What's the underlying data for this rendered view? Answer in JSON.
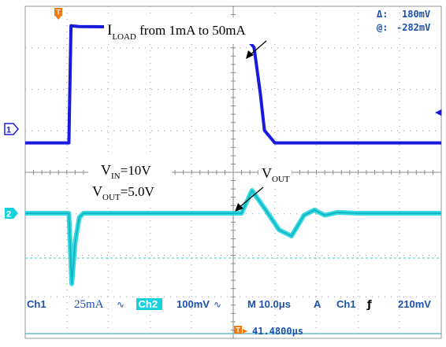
{
  "chart_data": {
    "type": "line",
    "grid": true,
    "time_per_div_us": 10.0,
    "series": [
      {
        "name": "Ch1",
        "scale": "25mA",
        "x_div": [
          0,
          1.05,
          1.1,
          1.3,
          4.8,
          5.2,
          5.5,
          5.65,
          5.75,
          6.0,
          10
        ],
        "y_div": [
          -0.2,
          -0.2,
          2.62,
          2.6,
          2.58,
          2.45,
          2.1,
          1.0,
          0.1,
          -0.2,
          -0.2
        ]
      },
      {
        "name": "Ch2",
        "scale": "100mV",
        "x_div": [
          0,
          1.05,
          1.12,
          1.2,
          1.3,
          1.4,
          5.2,
          5.45,
          5.8,
          6.1,
          6.4,
          6.7,
          6.95,
          7.2,
          7.5,
          8.0,
          8.5,
          9.0,
          10
        ],
        "y_div": [
          0,
          0,
          -1.7,
          -0.7,
          -0.1,
          0,
          0,
          0.55,
          0.05,
          -0.4,
          -0.55,
          -0.05,
          0.08,
          -0.05,
          0.02,
          0.0,
          0.0,
          0.0,
          0.0
        ]
      }
    ]
  },
  "annotations": {
    "iload_main": "I",
    "iload_sub": "LOAD",
    "iload_rest": " from 1mA  to 50mA",
    "vin_main": "V",
    "vin_sub": "IN",
    "vin_rest": "=10V",
    "vout_main": "V",
    "vout_sub": "OUT",
    "vout_rest": "=5.0V",
    "vout_label_main": "V",
    "vout_label_sub": "OUT"
  },
  "markers": {
    "trigger": "T",
    "ch1": "1",
    "ch2": "2",
    "trigger_level": "◀"
  },
  "cursor_readout": {
    "delta_symbol": "Δ:",
    "delta_value": "180mV",
    "at_symbol": "@:",
    "at_value": "-282mV"
  },
  "status_bar": {
    "ch1_label": "Ch1",
    "ch1_scale": "25mA",
    "ch1_coupling": "∿",
    "ch2_label": "Ch2",
    "ch2_scale": "100mV",
    "ch2_coupling": "∿",
    "timebase": "M 10.0μs",
    "trigger_mode": "A",
    "trigger_source": "Ch1",
    "trigger_slope": "ƒ",
    "trigger_level": "210mV"
  },
  "trigger_position": {
    "icon": "T",
    "arrow": "▸",
    "value": "41.4800μs"
  },
  "colors": {
    "ch1": "#1a1add",
    "ch2": "#16d2dc",
    "trigger_marker": "#f07a10",
    "text_blue": "#1c4fb0",
    "grid": "#9a9a9a",
    "ref_line": "#5fc0c0"
  }
}
